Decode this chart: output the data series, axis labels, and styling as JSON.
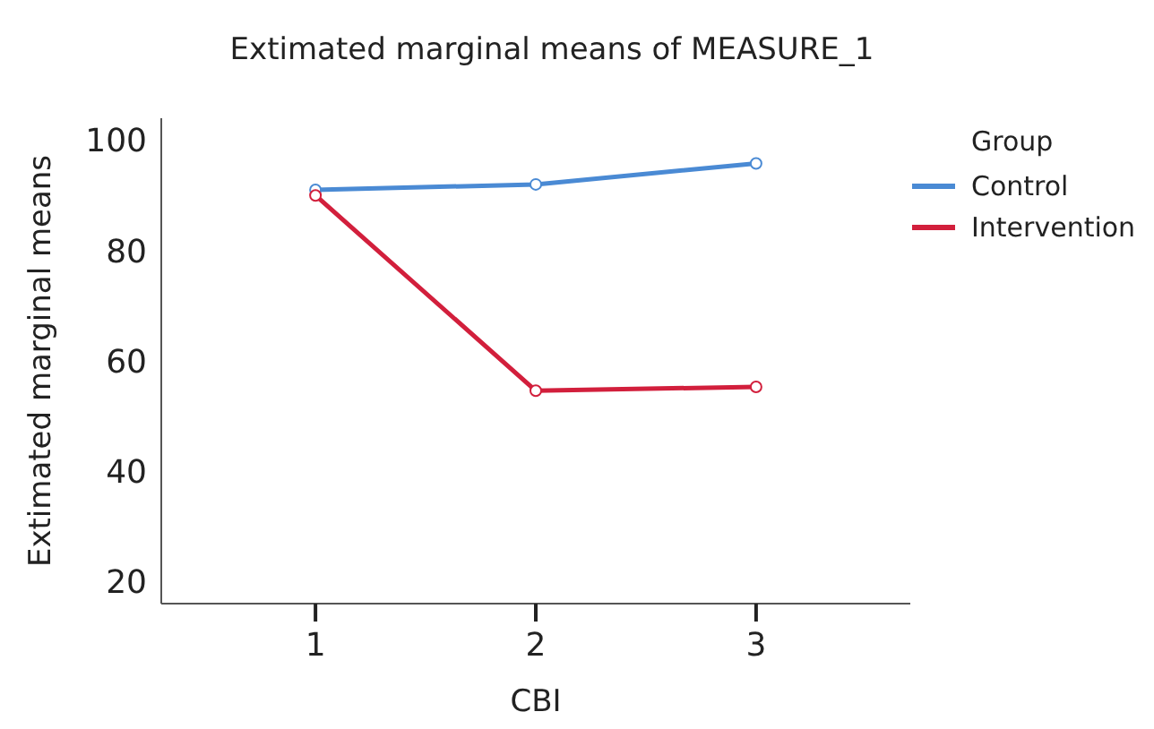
{
  "chart_data": {
    "type": "line",
    "title": "Extimated marginal means of MEASURE_1",
    "xlabel": "CBI",
    "ylabel": "Extimated marginal means",
    "legend_title": "Group",
    "x": [
      1,
      2,
      3
    ],
    "series": [
      {
        "name": "Control",
        "color": "#4a8ad4",
        "values": [
          91,
          92,
          95.8
        ]
      },
      {
        "name": "Intervention",
        "color": "#d21f3c",
        "values": [
          90,
          54.6,
          55.3
        ]
      }
    ],
    "xlim": [
      0.3,
      3.7
    ],
    "xticks": [
      1,
      2,
      3
    ],
    "ylim": [
      16,
      104
    ],
    "yticks": [
      20,
      40,
      60,
      80,
      100
    ],
    "legend": "top right",
    "marker": "circle",
    "line_style": "solid"
  }
}
